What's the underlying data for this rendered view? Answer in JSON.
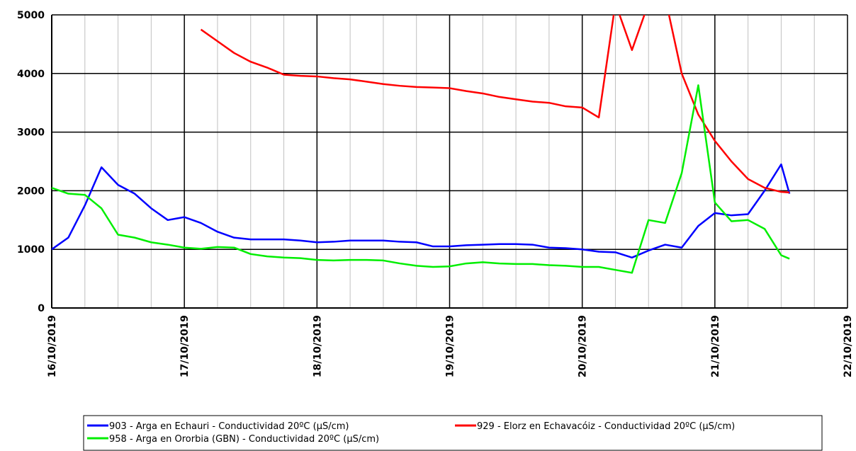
{
  "chart_data": {
    "type": "line",
    "x": [
      0,
      0.125,
      0.25,
      0.375,
      0.5,
      0.625,
      0.75,
      0.875,
      1,
      1.125,
      1.25,
      1.375,
      1.5,
      1.625,
      1.75,
      1.875,
      2,
      2.125,
      2.25,
      2.375,
      2.5,
      2.625,
      2.75,
      2.875,
      3,
      3.125,
      3.25,
      3.375,
      3.5,
      3.625,
      3.75,
      3.875,
      4,
      4.125,
      4.25,
      4.375,
      4.5,
      4.625,
      4.75,
      4.875,
      5,
      5.125,
      5.25,
      5.375,
      5.5,
      5.5625
    ],
    "series": [
      {
        "name": "903 - Arga en Echauri - Conductividad 20ºC (µS/cm)",
        "color": "#0000ff",
        "values": [
          1000,
          1200,
          1750,
          2400,
          2100,
          1950,
          1700,
          1500,
          1550,
          1450,
          1300,
          1200,
          1170,
          1170,
          1170,
          1150,
          1120,
          1130,
          1150,
          1150,
          1150,
          1130,
          1120,
          1050,
          1050,
          1070,
          1080,
          1090,
          1090,
          1080,
          1030,
          1020,
          1000,
          960,
          950,
          860,
          980,
          1080,
          1030,
          1400,
          1620,
          1580,
          1600,
          2000,
          2450,
          1950
        ]
      },
      {
        "name": "929 - Elorz en Echavacóiz - Conductividad 20ºC (µS/cm)",
        "color": "#ff0000",
        "values": [
          null,
          null,
          null,
          null,
          null,
          null,
          null,
          null,
          null,
          4750,
          4550,
          4350,
          4200,
          4100,
          3980,
          3960,
          3950,
          3920,
          3900,
          3860,
          3820,
          3790,
          3770,
          3760,
          3750,
          3700,
          3660,
          3600,
          3560,
          3520,
          3500,
          3440,
          3420,
          3250,
          5200,
          4400,
          5200,
          5300,
          4000,
          3300,
          2850,
          2500,
          2200,
          2050,
          1980,
          1970
        ]
      },
      {
        "name": "958 - Arga en Ororbia (GBN) - Conductividad 20ºC (µS/cm)",
        "color": "#00ee00",
        "values": [
          2050,
          1950,
          1930,
          1700,
          1250,
          1200,
          1120,
          1080,
          1030,
          1010,
          1040,
          1030,
          920,
          880,
          860,
          850,
          820,
          810,
          820,
          820,
          810,
          760,
          720,
          700,
          710,
          760,
          780,
          760,
          750,
          750,
          730,
          720,
          700,
          700,
          650,
          600,
          1500,
          1450,
          2300,
          3800,
          1800,
          1480,
          1500,
          1350,
          900,
          840
        ]
      }
    ],
    "xlim": [
      0,
      6
    ],
    "xticks": [
      {
        "value": 0,
        "label": "16/10/2019"
      },
      {
        "value": 1,
        "label": "17/10/2019"
      },
      {
        "value": 2,
        "label": "18/10/2019"
      },
      {
        "value": 3,
        "label": "19/10/2019"
      },
      {
        "value": 4,
        "label": "20/10/2019"
      },
      {
        "value": 5,
        "label": "21/10/2019"
      },
      {
        "value": 6,
        "label": "22/10/2019"
      }
    ],
    "ylim": [
      0,
      5000
    ],
    "yticks": [
      0,
      1000,
      2000,
      3000,
      4000,
      5000
    ],
    "grid": true
  }
}
